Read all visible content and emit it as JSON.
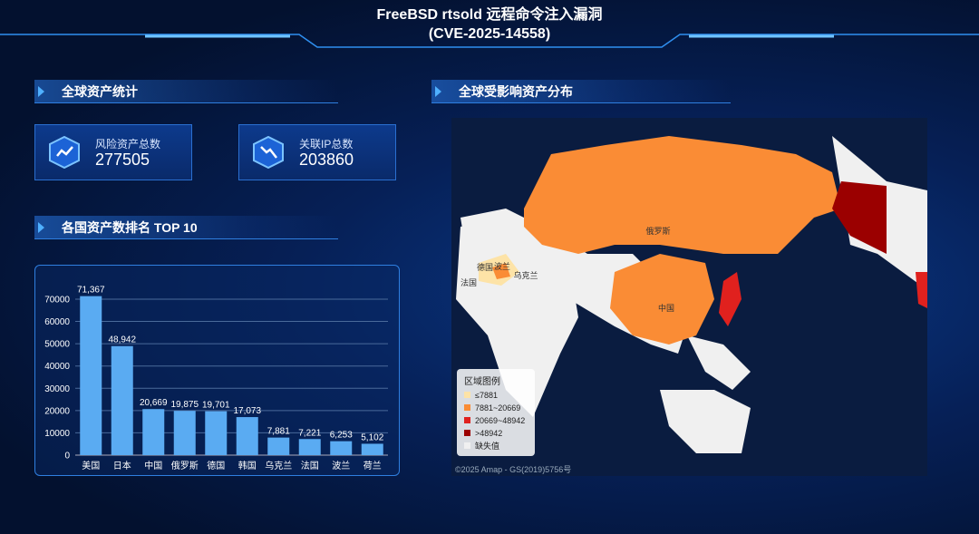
{
  "header": {
    "title": "FreeBSD rtsold 远程命令注入漏洞",
    "subtitle": "(CVE-2025-14558)"
  },
  "stats": {
    "section_title": "全球资产统计",
    "cards": [
      {
        "label": "风险资产总数",
        "value": 277505
      },
      {
        "label": "关联IP总数",
        "value": 203860
      }
    ]
  },
  "chart_data": {
    "type": "bar",
    "title": "各国资产数排名 TOP 10",
    "categories": [
      "美国",
      "日本",
      "中国",
      "俄罗斯",
      "德国",
      "韩国",
      "乌克兰",
      "法国",
      "波兰",
      "荷兰"
    ],
    "values": [
      71367,
      48942,
      20669,
      19875,
      19701,
      17073,
      7881,
      7221,
      6253,
      5102
    ],
    "value_labels": [
      "71,367",
      "48,942",
      "20,669",
      "19,875",
      "19,701",
      "17,073",
      "7,881",
      "7,221",
      "6,253",
      "5,102"
    ],
    "color": "#5aabf2",
    "ylim": [
      0,
      75000
    ],
    "yticks": [
      0,
      10000,
      20000,
      30000,
      40000,
      50000,
      60000,
      70000
    ],
    "grid": true
  },
  "map": {
    "title": "全球受影响资产分布",
    "labels": [
      "俄罗斯",
      "中国",
      "德国",
      "波兰",
      "乌克兰",
      "法国"
    ],
    "legend": {
      "title": "区域图例",
      "items": [
        {
          "label": "≤7881",
          "color": "#fde3a7"
        },
        {
          "label": "7881~20669",
          "color": "#fa8c35"
        },
        {
          "label": "20669~48942",
          "color": "#e0211e"
        },
        {
          "label": ">48942",
          "color": "#9b0000"
        },
        {
          "label": "缺失值",
          "color": "#f0f0f0"
        }
      ]
    },
    "attribution": "©2025 Amap - GS(2019)5756号"
  }
}
